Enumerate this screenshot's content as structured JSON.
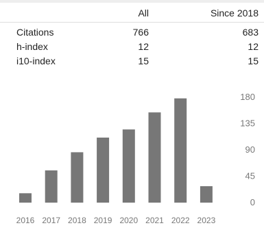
{
  "stats": {
    "headers": [
      "",
      "All",
      "Since 2018"
    ],
    "rows": [
      {
        "label": "Citations",
        "all": "766",
        "since": "683"
      },
      {
        "label": "h-index",
        "all": "12",
        "since": "12"
      },
      {
        "label": "i10-index",
        "all": "15",
        "since": "15"
      }
    ]
  },
  "chart_data": {
    "type": "bar",
    "categories": [
      "2016",
      "2017",
      "2018",
      "2019",
      "2020",
      "2021",
      "2022",
      "2023"
    ],
    "values": [
      16,
      55,
      86,
      111,
      125,
      154,
      178,
      28
    ],
    "ylim": [
      0,
      180
    ],
    "yticks": [
      "0",
      "45",
      "90",
      "135",
      "180"
    ],
    "bar_color": "#777777",
    "grid": false
  }
}
